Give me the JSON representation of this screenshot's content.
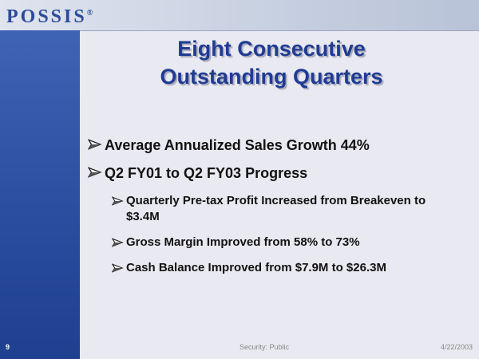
{
  "header": {
    "logo": "POSSIS",
    "logo_mark": "®"
  },
  "title": [
    "Eight Consecutive",
    "Outstanding Quarters"
  ],
  "bullets": [
    {
      "text": "Average Annualized Sales Growth 44%"
    },
    {
      "text": "Q2 FY01 to Q2 FY03 Progress",
      "items": [
        "Quarterly Pre-tax Profit Increased from Breakeven to $3.4M",
        "Gross Margin Improved from 58% to 73%",
        "Cash Balance Improved from $7.9M to $26.3M"
      ]
    }
  ],
  "footer": {
    "page": "9",
    "security": "Security: Public",
    "date": "4/22/2003"
  }
}
